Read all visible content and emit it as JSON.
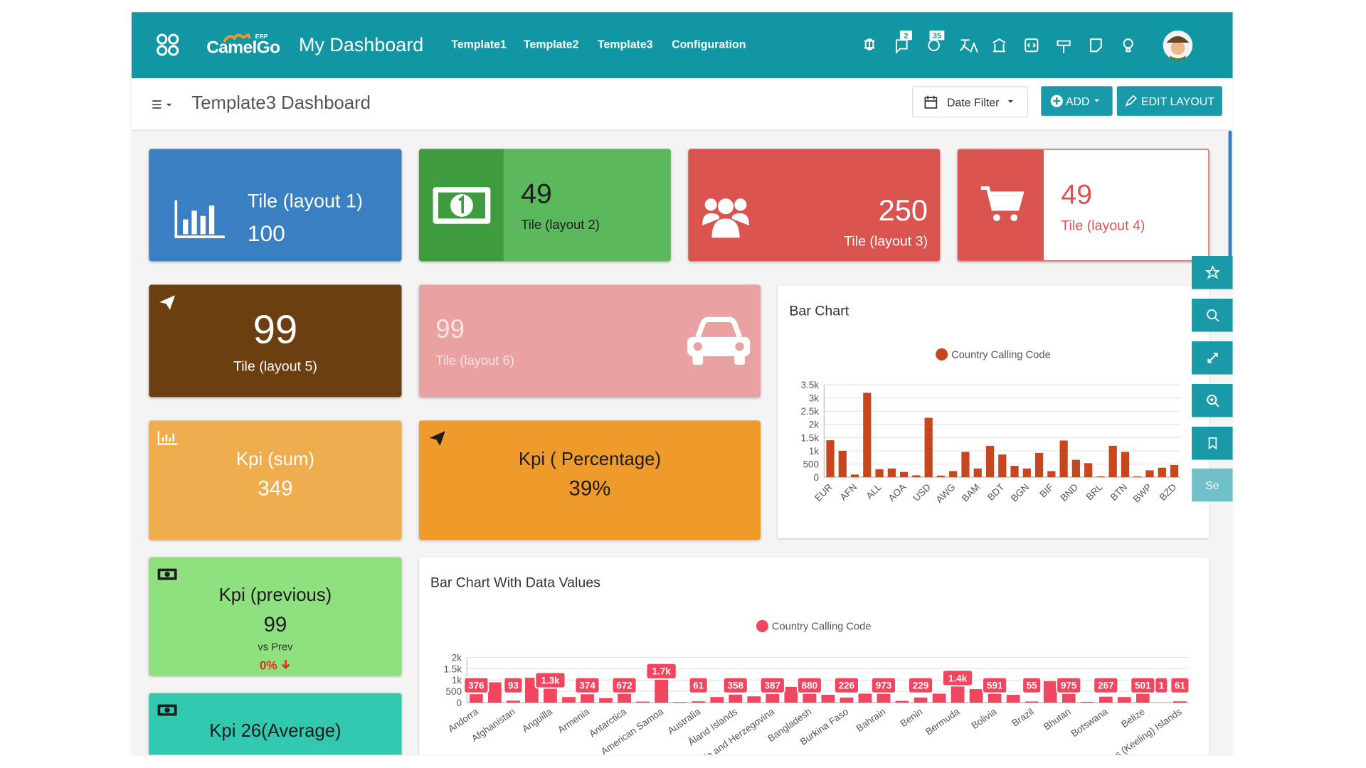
{
  "header": {
    "logo": "CamelGo",
    "logo_tag": "ERP",
    "title": "My Dashboard",
    "nav": [
      "Template1",
      "Template2",
      "Template3",
      "Configuration"
    ],
    "badges": [
      "2",
      "35"
    ]
  },
  "toolbar": {
    "title": "Template3 Dashboard",
    "buttons": [
      "Date Filter",
      "ADD",
      "EDIT LAYOUT"
    ]
  },
  "tiles": [
    {
      "title": "Tile (layout 1)",
      "value": 100
    },
    {
      "title": "Tile (layout 2)",
      "value": 49
    },
    {
      "title": "Tile (layout 3)",
      "value": 250
    },
    {
      "title": "Tile (layout 4)",
      "value": 49
    },
    {
      "title": "Tile (layout 5)",
      "value": 99
    },
    {
      "title": "Tile (layout 6)",
      "value": 99
    }
  ],
  "kpis": [
    {
      "title": "Kpi (sum)",
      "value": 349
    },
    {
      "title": "Kpi ( Percentage)",
      "value": "39%"
    },
    {
      "title": "Kpi (previous)",
      "value": 99,
      "compare": "vs Prev",
      "change": "0%"
    },
    {
      "title": "Kpi 26(Average)"
    }
  ],
  "side_button": "Se",
  "charts": [
    {
      "type": "bar",
      "title": "Bar Chart",
      "categories": [
        "EUR",
        null,
        "AFN",
        null,
        "ALL",
        null,
        "AOA",
        null,
        "USD",
        null,
        "AWG",
        null,
        "BAM",
        null,
        "BDT",
        null,
        "BGN",
        null,
        "BIF",
        null,
        "BND",
        null,
        "BRL",
        null,
        "BTN",
        null,
        "BWP",
        null,
        "BZD"
      ],
      "series": [
        {
          "name": "Country Calling Code",
          "color": "#c8461d",
          "values": [
            1400,
            1000,
            100,
            3200,
            300,
            330,
            200,
            70,
            2250,
            60,
            230,
            960,
            330,
            1190,
            860,
            430,
            330,
            920,
            230,
            1390,
            660,
            530,
            30,
            1190,
            960,
            30,
            260,
            360,
            460
          ]
        }
      ],
      "ylim": [
        0,
        3500
      ],
      "yticks": [
        0,
        500,
        {
          "value": 1000,
          "label": "1k"
        },
        {
          "value": 1500,
          "label": "1.5k"
        },
        {
          "value": 2000,
          "label": "2k"
        },
        {
          "value": 2500,
          "label": "2.5k"
        },
        {
          "value": 3000,
          "label": "3k"
        },
        {
          "value": 3500,
          "label": "3.5k"
        }
      ],
      "grid": true
    },
    {
      "type": "bar",
      "title": "Bar Chart With Data Values",
      "categories": [
        "Andorra",
        null,
        "Afghanistan",
        null,
        "Anguilla",
        null,
        "Armenia",
        null,
        "Antarctica",
        null,
        "American Samoa",
        null,
        "Australia",
        null,
        "Åland Islands",
        null,
        "Bosnia and Herzegovina",
        null,
        "Bangladesh",
        null,
        "Burkina Faso",
        null,
        "Bahrain",
        null,
        "Benin",
        null,
        "Bermuda",
        null,
        "Bolivia",
        null,
        "Brazil",
        null,
        "Bhutan",
        null,
        "Botswana",
        null,
        "Belize",
        null,
        "Cocos (Keeling) Islands"
      ],
      "series": [
        {
          "name": "Country Calling Code",
          "color": "#f0465f",
          "values": [
            376,
            900,
            93,
            1100,
            1300,
            250,
            374,
            200,
            672,
            50,
            1700,
            30,
            61,
            250,
            358,
            280,
            387,
            700,
            880,
            350,
            226,
            400,
            973,
            80,
            229,
            400,
            1400,
            600,
            591,
            350,
            55,
            950,
            975,
            40,
            267,
            250,
            501,
            1,
            61
          ],
          "value_labels": [
            "376",
            null,
            "93",
            null,
            "1.3k",
            null,
            "374",
            null,
            "672",
            null,
            "1.7k",
            null,
            "61",
            null,
            "358",
            null,
            "387",
            null,
            "880",
            null,
            "226",
            null,
            "973",
            null,
            "229",
            null,
            "1.4k",
            null,
            "591",
            null,
            "55",
            null,
            "975",
            null,
            "267",
            null,
            "501",
            "1",
            "61"
          ]
        }
      ],
      "ylim": [
        0,
        2000
      ],
      "yticks": [
        0,
        500,
        {
          "value": 1000,
          "label": "1k"
        },
        {
          "value": 1500,
          "label": "1.5k"
        },
        {
          "value": 2000,
          "label": "2k"
        }
      ],
      "grid": true
    }
  ]
}
